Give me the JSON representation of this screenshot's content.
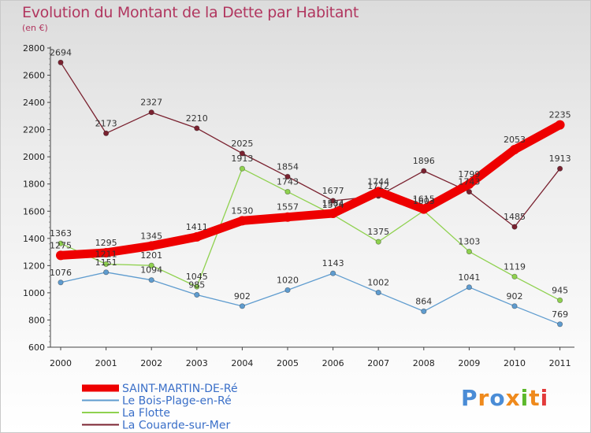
{
  "header": {
    "title": "Evolution du Montant de la Dette par Habitant",
    "unit": "(en €)"
  },
  "logo": {
    "text": "Proxiti"
  },
  "chart_data": {
    "type": "line",
    "title": "Evolution du Montant de la Dette par Habitant",
    "subtitle": "(en €)",
    "x": [
      "2000",
      "2001",
      "2002",
      "2003",
      "2004",
      "2005",
      "2006",
      "2007",
      "2008",
      "2009",
      "2010",
      "2011"
    ],
    "ylim": [
      600,
      2800
    ],
    "yticks": [
      600,
      800,
      1000,
      1200,
      1400,
      1600,
      1800,
      2000,
      2200,
      2400,
      2600,
      2800
    ],
    "grid": false,
    "legend": "bottom-left",
    "series": [
      {
        "name": "SAINT-MARTIN-DE-Ré",
        "color": "#ee0000",
        "values": [
          1275,
          1295,
          1345,
          1411,
          1530,
          1557,
          1584,
          1744,
          1615,
          1799,
          2053,
          2235
        ]
      },
      {
        "name": "Le Bois-Plage-en-Ré",
        "color": "#5f9ccf",
        "values": [
          1076,
          1151,
          1094,
          985,
          902,
          1020,
          1143,
          1002,
          864,
          1041,
          902,
          769
        ]
      },
      {
        "name": "La Flotte",
        "color": "#8fd14f",
        "values": [
          1363,
          1211,
          1201,
          1045,
          1913,
          1743,
          1574,
          1375,
          1603,
          1303,
          1119,
          945
        ]
      },
      {
        "name": "La Couarde-sur-Mer",
        "color": "#7a2230",
        "values": [
          2694,
          2173,
          2327,
          2210,
          2025,
          1854,
          1677,
          1712,
          1896,
          1743,
          1485,
          1913
        ]
      }
    ]
  }
}
